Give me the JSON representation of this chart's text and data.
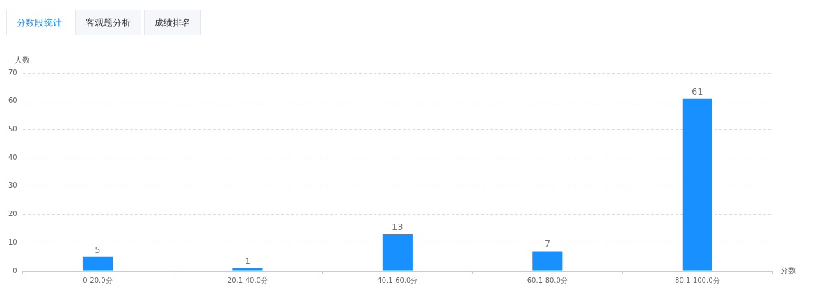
{
  "chart_data": {
    "type": "bar",
    "ylabel": "人数",
    "xlabel": "分数",
    "annotations": [
      "分数段统计",
      "客观题分析",
      "成绩排名"
    ],
    "categories": [
      "0-20.0分",
      "20.1-40.0分",
      "40.1-60.0分",
      "60.1-80.0分",
      "80.1-100.0分"
    ],
    "values": [
      5,
      1,
      13,
      7,
      61
    ],
    "color": "#1890ff",
    "ylim": [
      0,
      70
    ],
    "yticks": [
      0,
      10,
      20,
      30,
      40,
      50,
      60,
      70
    ],
    "grid": "y",
    "data_labels": true
  }
}
